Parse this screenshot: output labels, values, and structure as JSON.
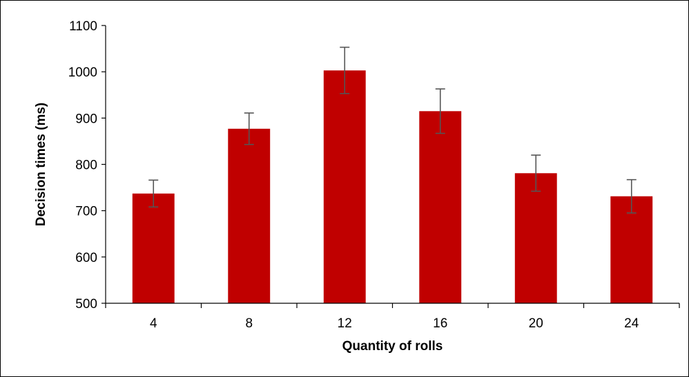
{
  "chart_data": {
    "type": "bar",
    "title": "",
    "xlabel": "Quantity of rolls",
    "ylabel": "Decision times (ms)",
    "categories": [
      "4",
      "8",
      "12",
      "16",
      "20",
      "24"
    ],
    "values": [
      737,
      877,
      1003,
      915,
      781,
      731
    ],
    "error": [
      29,
      34,
      50,
      48,
      39,
      36
    ],
    "ylim": [
      500,
      1100
    ],
    "yticks": [
      500,
      600,
      700,
      800,
      900,
      1000,
      1100
    ],
    "ytick_labels": [
      "500",
      "600",
      "700",
      "800",
      "900",
      "1000",
      "1100"
    ],
    "bar_color": "#c00000",
    "error_bar_color": "#555555",
    "grid": false,
    "legend": "none"
  }
}
